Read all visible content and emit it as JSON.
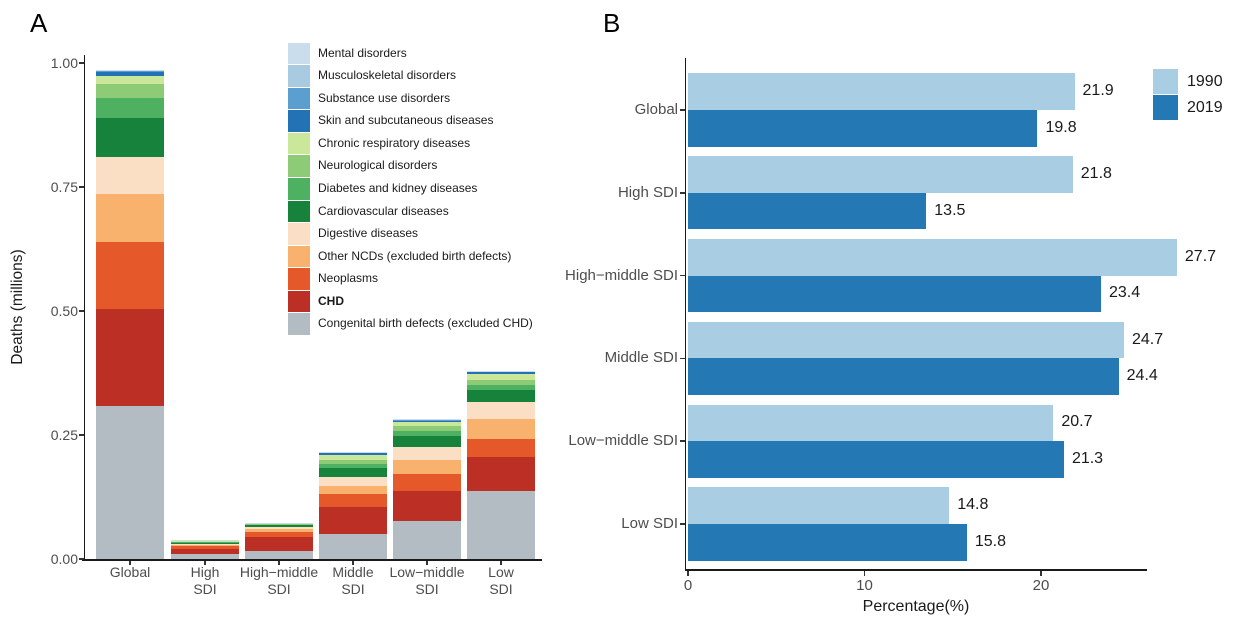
{
  "figure": {
    "panel_a_label": "A",
    "panel_b_label": "B"
  },
  "chart_data": [
    {
      "type": "bar",
      "stacked": true,
      "orientation": "vertical",
      "ylabel": "Deaths (millions)",
      "xlabel": "",
      "ylim": [
        0,
        1.0
      ],
      "yticks": [
        0,
        0.25,
        0.5,
        0.75,
        1.0
      ],
      "ytick_labels": [
        "0.00",
        "0.25",
        "0.50",
        "0.75",
        "1.00"
      ],
      "categories": [
        "Global",
        "High\nSDI",
        "High−middle\nSDI",
        "Middle\nSDI",
        "Low−middle\nSDI",
        "Low\nSDI"
      ],
      "legend_position": "top-left-of-plot",
      "grid": false,
      "series": [
        {
          "name": "Congenital birth defects (excluded CHD)",
          "color": "#b3bcc3",
          "bold": false,
          "values": [
            0.309,
            0.01,
            0.017,
            0.051,
            0.077,
            0.138
          ]
        },
        {
          "name": "CHD",
          "color": "#bb2f25",
          "bold": true,
          "values": [
            0.196,
            0.011,
            0.027,
            0.054,
            0.06,
            0.067
          ]
        },
        {
          "name": "Neoplasms",
          "color": "#e4582a",
          "bold": false,
          "values": [
            0.134,
            0.006,
            0.011,
            0.026,
            0.035,
            0.036
          ]
        },
        {
          "name": "Other NCDs (excluded birth defects)",
          "color": "#f8b26d",
          "bold": false,
          "values": [
            0.096,
            0.002,
            0.006,
            0.017,
            0.028,
            0.042
          ]
        },
        {
          "name": "Digestive diseases",
          "color": "#fadfc5",
          "bold": false,
          "values": [
            0.075,
            0.002,
            0.003,
            0.018,
            0.025,
            0.034
          ]
        },
        {
          "name": "Cardiovascular diseases",
          "color": "#17823c",
          "bold": false,
          "values": [
            0.079,
            0.003,
            0.004,
            0.018,
            0.022,
            0.023
          ]
        },
        {
          "name": "Diabetes and kidney diseases",
          "color": "#4eb161",
          "bold": false,
          "values": [
            0.04,
            0.001,
            0.002,
            0.008,
            0.012,
            0.01
          ]
        },
        {
          "name": "Neurological disorders",
          "color": "#8ecb76",
          "bold": false,
          "values": [
            0.028,
            0.001,
            0.0012,
            0.0075,
            0.01,
            0.01
          ]
        },
        {
          "name": "Chronic respiratory diseases",
          "color": "#cbe89a",
          "bold": false,
          "values": [
            0.016,
            0.0008,
            0.0008,
            0.011,
            0.008,
            0.013
          ]
        },
        {
          "name": "Skin and subcutaneous diseases",
          "color": "#2272b5",
          "bold": false,
          "values": [
            0.009,
            0.0005,
            0.0005,
            0.004,
            0.003,
            0.005
          ]
        },
        {
          "name": "Substance use disorders",
          "color": "#5b9fd0",
          "bold": false,
          "values": [
            0.002,
            0.0003,
            0.0004,
            0.001,
            0.001,
            0.001
          ]
        },
        {
          "name": "Musculoskeletal disorders",
          "color": "#a8cbe2",
          "bold": false,
          "values": [
            0.001,
            0.0002,
            0.0003,
            0.0005,
            0.0005,
            0.0005
          ]
        },
        {
          "name": "Mental disorders",
          "color": "#c9dded",
          "bold": false,
          "values": [
            0.001,
            0.0002,
            0.0003,
            0.0005,
            0.0005,
            0.0005
          ]
        }
      ]
    },
    {
      "type": "bar",
      "stacked": false,
      "orientation": "horizontal",
      "xlabel": "Percentage(%)",
      "ylabel": "",
      "xlim": [
        0,
        30
      ],
      "xticks": [
        0,
        10,
        20
      ],
      "xtick_labels": [
        "0",
        "10",
        "20"
      ],
      "categories": [
        "Global",
        "High SDI",
        "High−middle SDI",
        "Middle SDI",
        "Low−middle SDI",
        "Low SDI"
      ],
      "legend_position": "top-right",
      "grid": false,
      "series": [
        {
          "name": "1990",
          "color": "#a9cde3",
          "values": [
            21.9,
            21.8,
            27.7,
            24.7,
            20.7,
            14.8
          ]
        },
        {
          "name": "2019",
          "color": "#2478b4",
          "values": [
            19.8,
            13.5,
            23.4,
            24.4,
            21.3,
            15.8
          ]
        }
      ]
    }
  ]
}
